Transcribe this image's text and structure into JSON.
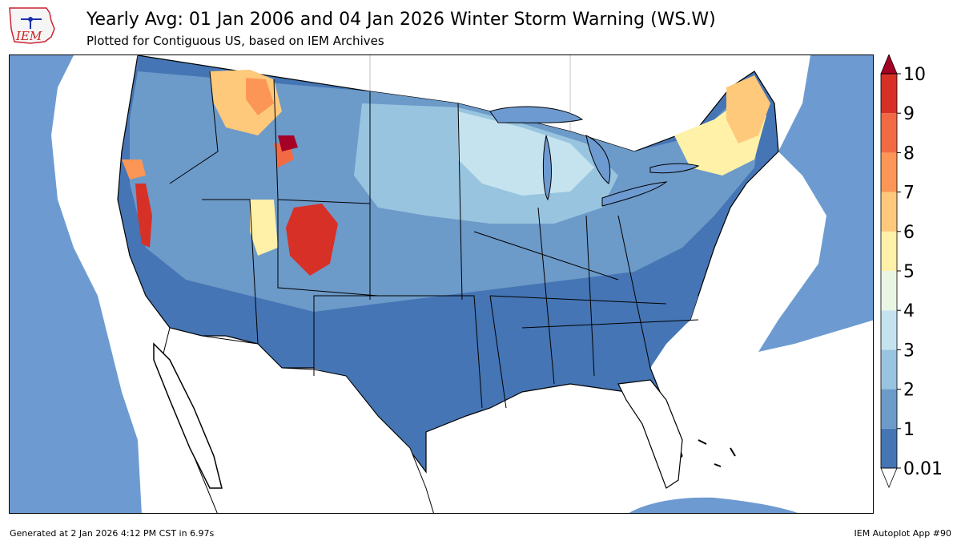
{
  "header": {
    "title": "Yearly Avg: 01 Jan 2006 and 04 Jan 2026 Winter Storm Warning (WS.W)",
    "subtitle": "Plotted for Contiguous US, based on IEM Archives",
    "logo_text": "IEM"
  },
  "footer": {
    "generated": "Generated at 2 Jan 2026 4:12 PM CST in 6.97s",
    "app": "IEM Autoplot App #90"
  },
  "legend": {
    "labels": [
      "0.01",
      "1",
      "2",
      "3",
      "4",
      "5",
      "6",
      "7",
      "8",
      "9",
      "10"
    ],
    "colors": [
      "#4575b4",
      "#6c9ac9",
      "#98c4df",
      "#c5e3ef",
      "#eaf6e3",
      "#fff1a8",
      "#fec97b",
      "#fc9656",
      "#f26a44",
      "#d73027",
      "#a50026"
    ],
    "extend": "both",
    "under_color": "#ffffff",
    "over_color": "#a50026"
  },
  "colors": {
    "water": "#6d9bd1",
    "land_outside": "#ffffff",
    "state_border": "#000000"
  }
}
